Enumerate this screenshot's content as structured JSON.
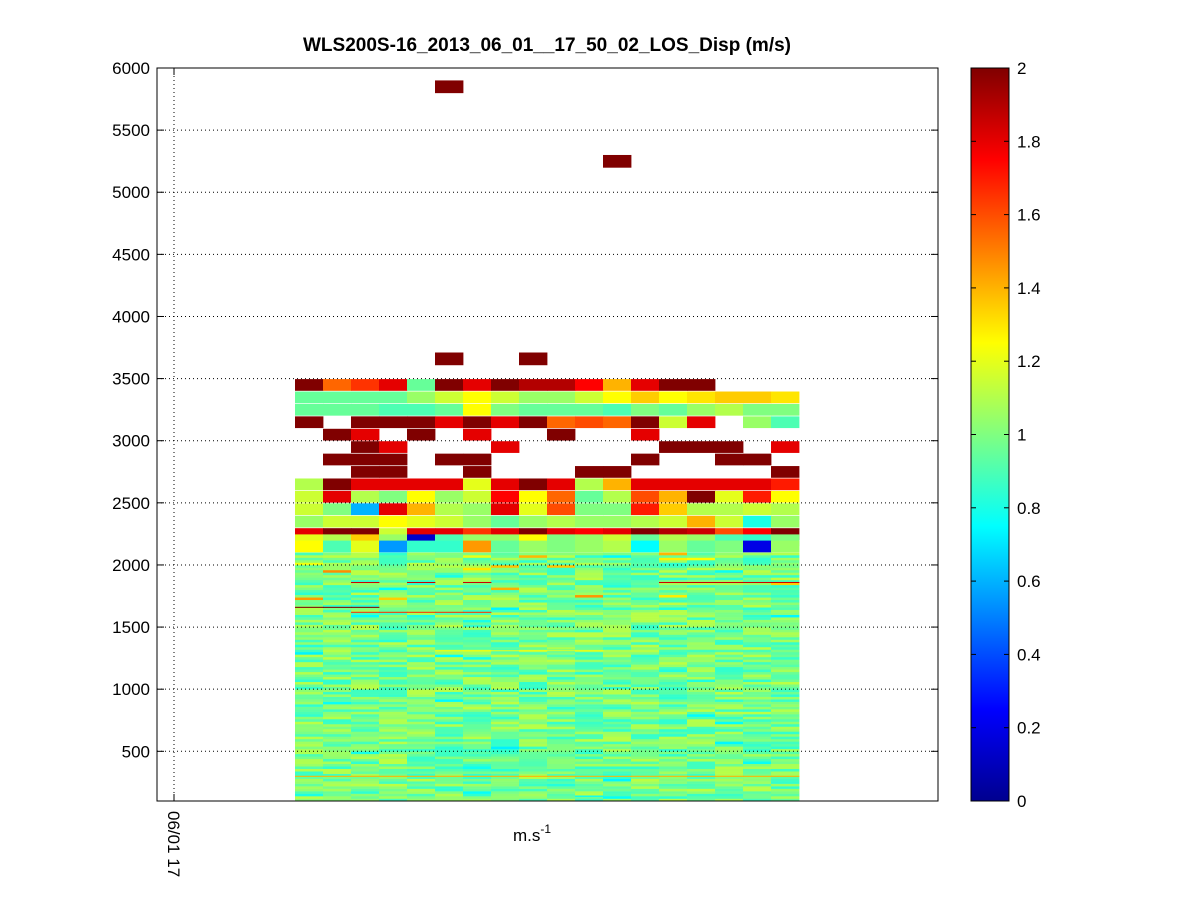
{
  "chart_data": {
    "type": "heatmap",
    "title": "WLS200S-16_2013_06_01__17_50_02_LOS_Disp (m/s)",
    "xlabel_base": "m.s",
    "xlabel_exp": "-1",
    "x_tick_label": "06/01 17",
    "y_ticks": [
      500,
      1000,
      1500,
      2000,
      2500,
      3000,
      3500,
      4000,
      4500,
      5000,
      5500,
      6000
    ],
    "ylim": [
      100,
      6000
    ],
    "grid": true,
    "colorbar": {
      "ticks": [
        0,
        0.2,
        0.4,
        0.6,
        0.8,
        1,
        1.2,
        1.4,
        1.6,
        1.8,
        2
      ],
      "clim": [
        0,
        2
      ],
      "colormap": "jet"
    },
    "n_columns": 18,
    "isolated_cells": [
      {
        "column": 5,
        "y": 5850,
        "value": 2.0
      },
      {
        "column": 11,
        "y": 5250,
        "value": 2.0
      },
      {
        "column": 5,
        "y": 3660,
        "value": 2.0
      },
      {
        "column": 8,
        "y": 3660,
        "value": 2.0
      }
    ],
    "upper_rows": [
      {
        "y": 3450,
        "values": [
          2.0,
          1.55,
          1.65,
          1.8,
          0.95,
          2.0,
          1.8,
          2.0,
          1.9,
          1.9,
          1.75,
          1.4,
          1.8,
          2.0,
          2.0,
          null,
          null,
          null
        ]
      },
      {
        "y": 3350,
        "values": [
          0.95,
          0.95,
          0.95,
          0.95,
          1.05,
          1.15,
          1.25,
          1.15,
          1.05,
          1.05,
          1.15,
          1.25,
          1.35,
          1.25,
          1.3,
          1.35,
          1.35,
          1.3
        ]
      },
      {
        "y": 3250,
        "values": [
          0.95,
          0.95,
          0.95,
          0.9,
          0.9,
          0.95,
          1.25,
          1.0,
          0.95,
          0.95,
          0.95,
          0.9,
          1.0,
          0.95,
          1.05,
          1.1,
          1.0,
          1.0
        ]
      },
      {
        "y": 3150,
        "values": [
          2.0,
          null,
          2.0,
          2.0,
          2.0,
          1.8,
          2.0,
          1.8,
          2.0,
          1.55,
          1.6,
          1.55,
          2.0,
          1.15,
          1.8,
          null,
          1.05,
          0.9
        ]
      },
      {
        "y": 3050,
        "values": [
          null,
          2.0,
          1.8,
          null,
          2.0,
          null,
          1.8,
          null,
          null,
          2.0,
          null,
          null,
          1.8,
          null,
          null,
          null,
          null,
          null
        ]
      },
      {
        "y": 2950,
        "values": [
          null,
          null,
          2.0,
          1.8,
          null,
          null,
          null,
          1.8,
          null,
          null,
          null,
          null,
          null,
          2.0,
          2.0,
          2.0,
          null,
          1.8
        ]
      },
      {
        "y": 2850,
        "values": [
          null,
          2.0,
          2.0,
          2.0,
          null,
          2.0,
          2.0,
          null,
          null,
          null,
          null,
          null,
          2.0,
          null,
          null,
          2.0,
          2.0,
          null
        ]
      },
      {
        "y": 2750,
        "values": [
          null,
          null,
          2.0,
          2.0,
          null,
          null,
          2.0,
          null,
          null,
          null,
          2.0,
          2.0,
          null,
          null,
          null,
          null,
          null,
          2.0
        ]
      },
      {
        "y": 2650,
        "values": [
          1.1,
          2.0,
          1.8,
          1.8,
          1.8,
          1.8,
          1.2,
          1.8,
          2.0,
          1.8,
          1.1,
          1.4,
          1.8,
          1.8,
          1.8,
          1.8,
          1.8,
          1.7
        ]
      },
      {
        "y": 2550,
        "values": [
          1.15,
          1.8,
          1.1,
          1.0,
          1.25,
          1.05,
          1.15,
          1.75,
          1.25,
          1.55,
          0.95,
          1.1,
          1.6,
          1.4,
          2.0,
          1.2,
          1.7,
          1.25
        ]
      },
      {
        "y": 2450,
        "values": [
          1.15,
          1.0,
          0.6,
          1.8,
          1.4,
          1.1,
          1.05,
          1.8,
          1.2,
          1.6,
          1.0,
          1.0,
          1.7,
          1.35,
          1.1,
          1.1,
          1.15,
          1.1
        ]
      },
      {
        "y": 2350,
        "values": [
          1.05,
          1.15,
          1.15,
          1.25,
          1.2,
          1.15,
          1.05,
          0.95,
          1.05,
          1.1,
          1.05,
          1.05,
          1.1,
          1.15,
          1.4,
          1.15,
          0.8,
          1.05
        ]
      },
      {
        "y": 2250,
        "values": [
          1.8,
          2.0,
          2.0,
          1.15,
          1.8,
          1.8,
          1.65,
          1.8,
          2.0,
          1.8,
          1.75,
          1.8,
          2.0,
          1.9,
          1.85,
          1.6,
          1.75,
          2.0
        ]
      },
      {
        "y": 2200,
        "values": [
          1.2,
          1.1,
          1.35,
          1.05,
          0.15,
          0.9,
          1.05,
          1.05,
          1.25,
          1.0,
          1.05,
          1.15,
          0.95,
          1.1,
          1.05,
          0.9,
          0.85,
          1.0
        ]
      },
      {
        "y": 2150,
        "values": [
          1.25,
          0.9,
          1.2,
          0.55,
          0.85,
          0.85,
          1.45,
          0.95,
          1.05,
          1.0,
          1.05,
          1.1,
          0.75,
          1.05,
          0.95,
          1.0,
          0.2,
          1.05
        ]
      }
    ],
    "bands": [
      {
        "y": 1860,
        "columns": [
          2,
          4,
          6,
          13,
          14,
          15,
          16,
          17
        ],
        "value": 1.85
      },
      {
        "y": 1660,
        "columns": [
          0,
          1,
          2
        ],
        "value": 2.0
      },
      {
        "y": 1620,
        "columns": [
          2,
          3,
          4,
          5,
          6
        ],
        "value": 1.65
      },
      {
        "y": 1310,
        "columns": [
          5,
          6,
          7,
          8,
          9,
          10
        ],
        "value": 1.25
      },
      {
        "y": 300,
        "columns": [
          0,
          1,
          2,
          3,
          4,
          5,
          6,
          7,
          8,
          9,
          10,
          11,
          12,
          13,
          14,
          15,
          16,
          17
        ],
        "value": 1.4
      }
    ],
    "low_cell": {
      "column": 10,
      "y": 140,
      "value": 0.75
    }
  }
}
